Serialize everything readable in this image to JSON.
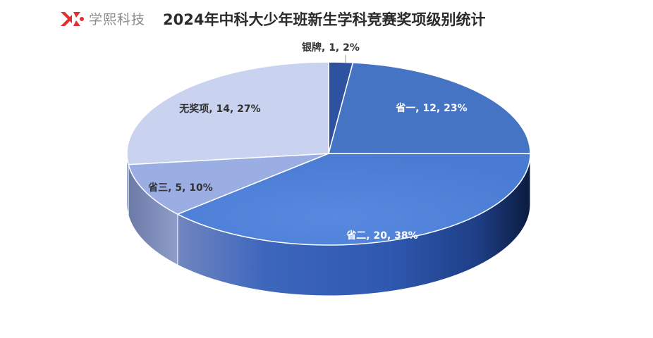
{
  "brand": {
    "name": "学熙科技"
  },
  "chart_data": {
    "type": "pie",
    "title": "2024年中科大少年班新生学科竞赛奖项级别统计",
    "slices": [
      {
        "name": "银牌",
        "value": 1,
        "percent": "2%",
        "color": "#2f52a0",
        "label": "银牌, 1, 2%"
      },
      {
        "name": "省一",
        "value": 12,
        "percent": "23%",
        "color": "#4574c4",
        "label": "省一, 12, 23%"
      },
      {
        "name": "省二",
        "value": 20,
        "percent": "38%",
        "color": "#4d80d8",
        "label": "省二, 20, 38%"
      },
      {
        "name": "省三",
        "value": 5,
        "percent": "10%",
        "color": "#9aaee4",
        "label": "省三, 5, 10%"
      },
      {
        "name": "无奖项",
        "value": 14,
        "percent": "27%",
        "color": "#c9d2ef",
        "label": "无奖项, 14, 27%"
      }
    ]
  }
}
